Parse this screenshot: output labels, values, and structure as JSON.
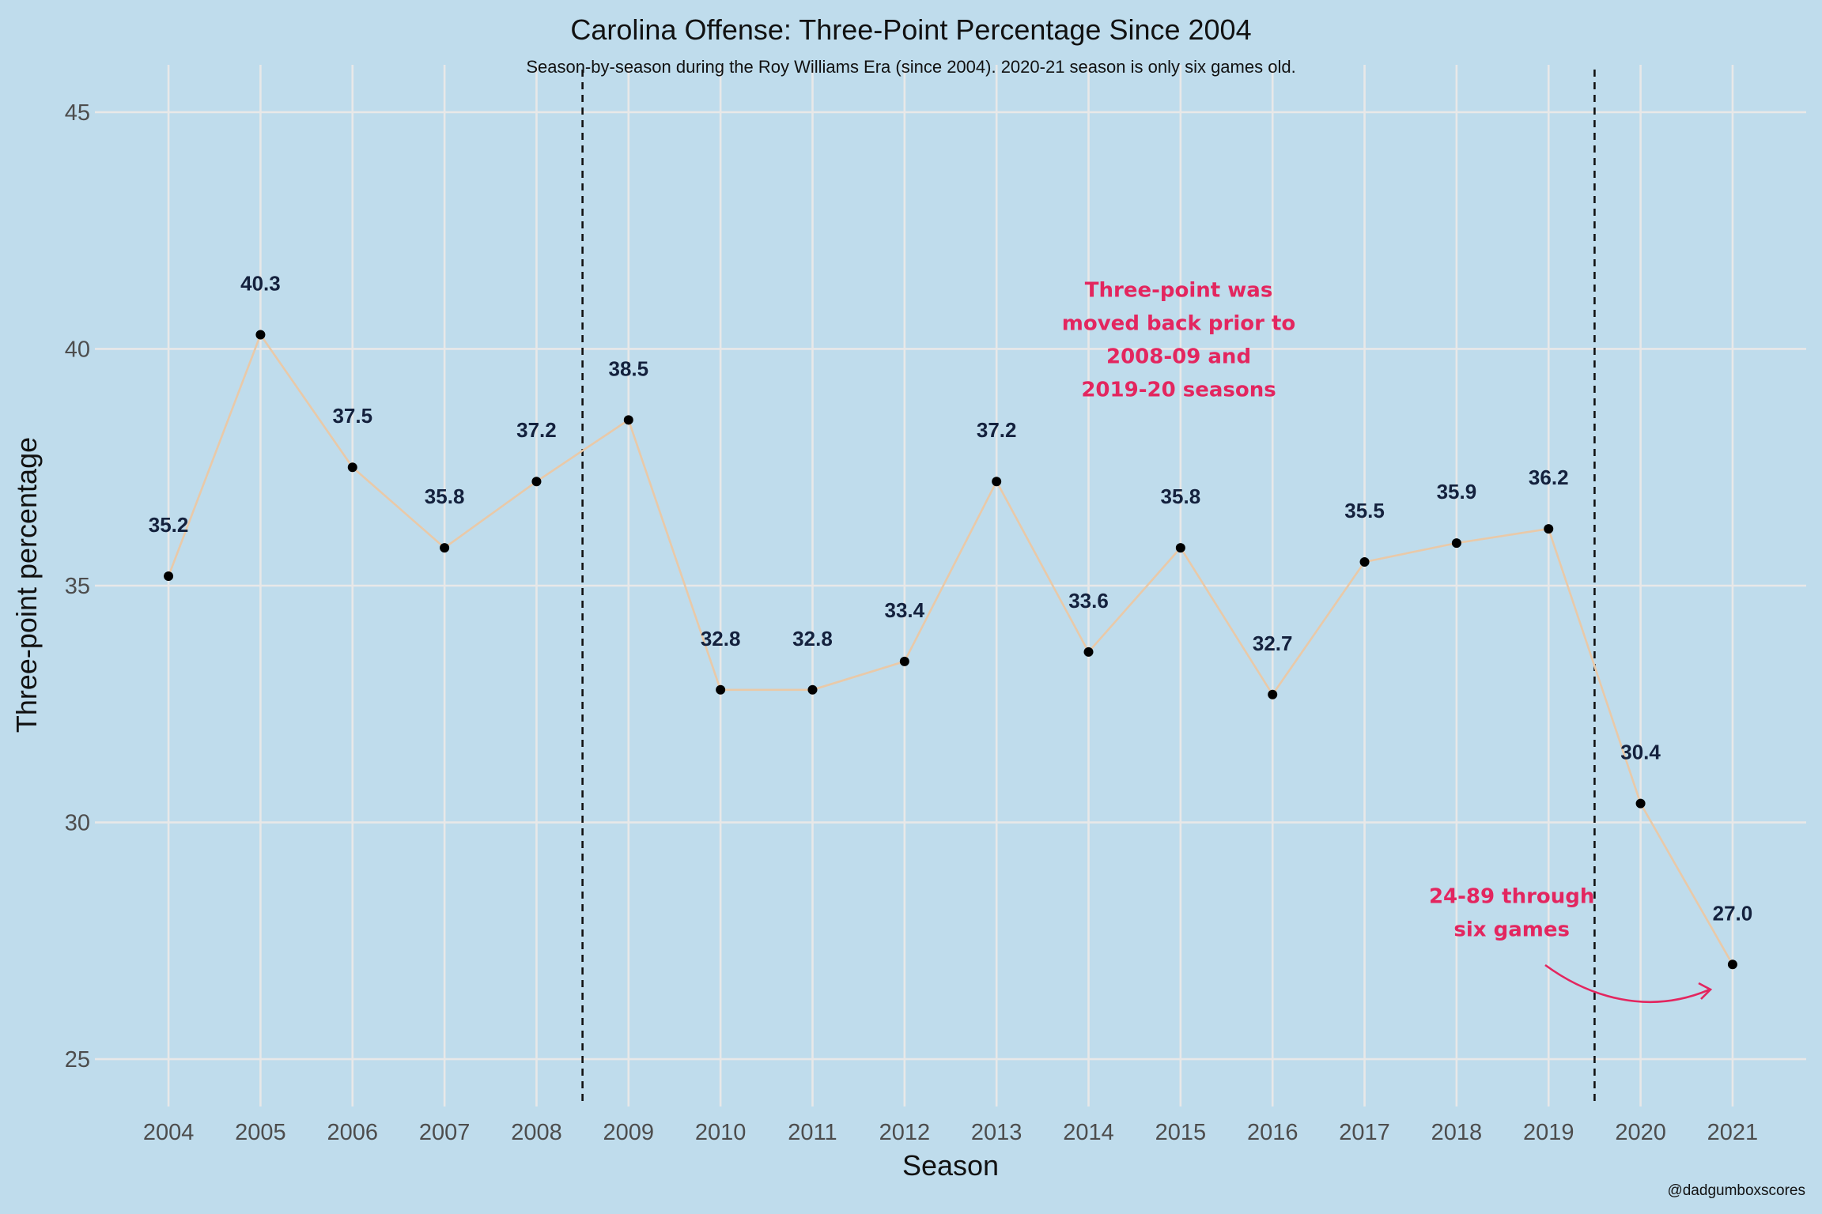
{
  "chart_data": {
    "type": "line",
    "title": "Carolina Offense: Three-Point Percentage Since 2004",
    "subtitle": "Season-by-season during the Roy Williams Era (since 2004). 2020-21 season is only six games old.",
    "xlabel": "Season",
    "ylabel": "Three-point percentage",
    "x": [
      2004,
      2005,
      2006,
      2007,
      2008,
      2009,
      2010,
      2011,
      2012,
      2013,
      2014,
      2015,
      2016,
      2017,
      2018,
      2019,
      2020,
      2021
    ],
    "values": [
      35.2,
      40.3,
      37.5,
      35.8,
      37.2,
      38.5,
      32.8,
      32.8,
      33.4,
      37.2,
      33.6,
      35.8,
      32.7,
      35.5,
      35.9,
      36.2,
      30.4,
      27.0
    ],
    "labels": [
      "35.2",
      "40.3",
      "37.5",
      "35.8",
      "37.2",
      "38.5",
      "32.8",
      "32.8",
      "33.4",
      "37.2",
      "33.6",
      "35.8",
      "32.7",
      "35.5",
      "35.9",
      "36.2",
      "30.4",
      "27.0"
    ],
    "ylim": [
      24,
      46
    ],
    "yticks": [
      25,
      30,
      35,
      40,
      45
    ],
    "xlim": [
      2003.2,
      2021.8
    ],
    "grid": true,
    "reference_lines_x": [
      2008.5,
      2019.5
    ],
    "annotations": [
      {
        "lines": [
          "Three-point was",
          "moved back prior to",
          "2008-09 and",
          "2019-20 seasons"
        ],
        "x": 2014.98,
        "y": 41.1
      },
      {
        "lines": [
          "24-89 through",
          "six games"
        ],
        "x": 2018.6,
        "y": 28.3
      }
    ],
    "caption": "@dadgumboxscores",
    "colors": {
      "background": "#bfdcec",
      "line": "#e9c9a8",
      "points": "#000000",
      "data_labels": "#14213d",
      "annotation": "#e3265f",
      "grid": "#e8e8e8"
    }
  }
}
